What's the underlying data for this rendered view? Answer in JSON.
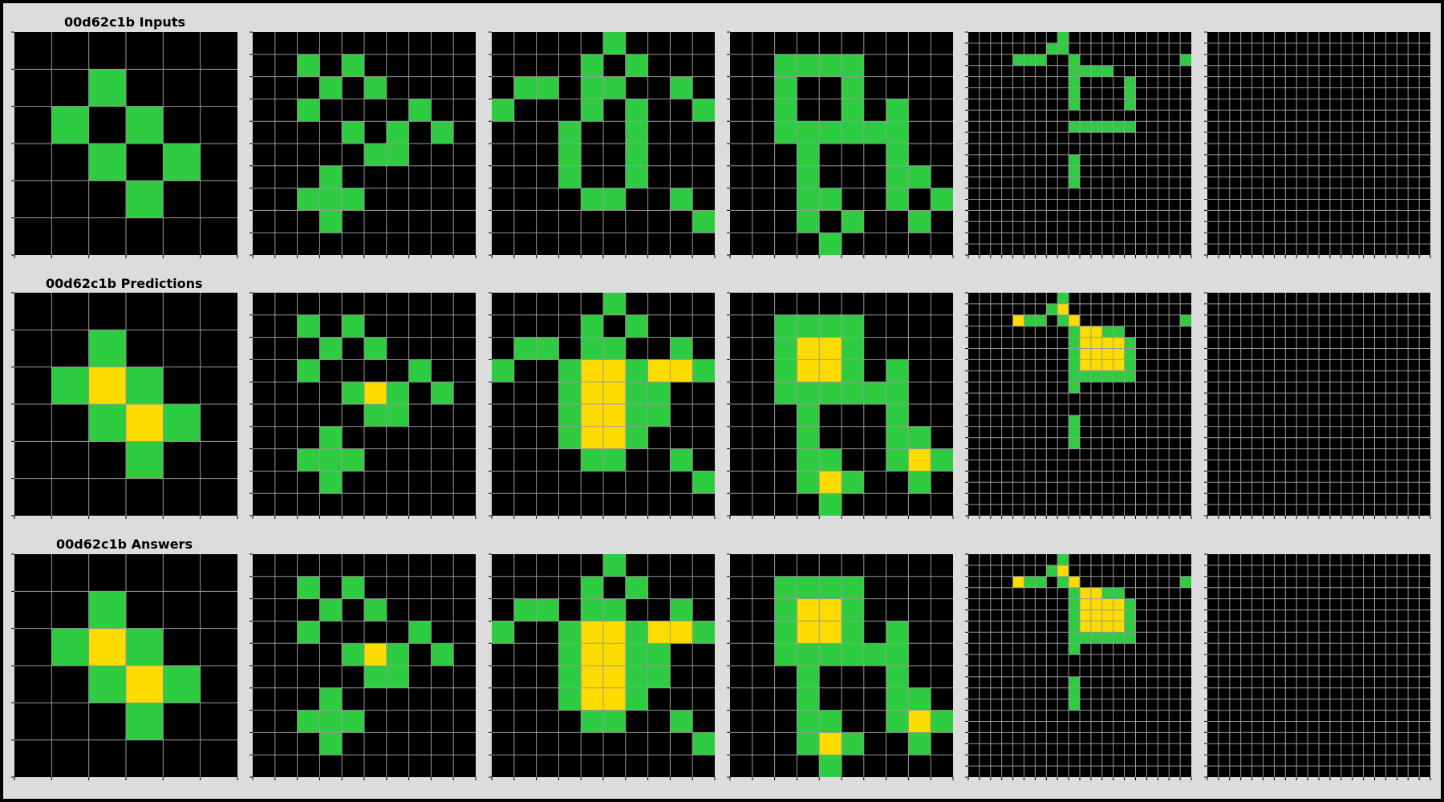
{
  "puzzle_id": "00d62c1b",
  "rows": [
    {
      "title": "00d62c1b Inputs"
    },
    {
      "title": "00d62c1b Predictions"
    },
    {
      "title": "00d62c1b Answers"
    }
  ],
  "colors": {
    "0": "#000000",
    "3": "#2ecc40",
    "4": "#ffdc00"
  },
  "grids": [
    [
      [
        "000000",
        "003000",
        "030300",
        "003030",
        "000300",
        "000000"
      ],
      [
        "0000000000",
        "0030300000",
        "0003030000",
        "0030000300",
        "0000303030",
        "0000033000",
        "0003000000",
        "0033300000",
        "0003000000",
        "0000000000"
      ],
      [
        "0000030000",
        "0000303000",
        "0330330030",
        "3000303003",
        "0003003000",
        "0003003000",
        "0003003000",
        "0000330030",
        "0000000003",
        "0000000000"
      ],
      [
        "0000000000",
        "0033330000",
        "0030030000",
        "0030030300",
        "0033333300",
        "0003000300",
        "0003000330",
        "0003300303",
        "0003030030",
        "0000300000"
      ],
      [
        "00000000300000000000",
        "00000003300000000000",
        "00003330030000000003",
        "00000000033330000000",
        "00000000030000300000",
        "00000000030000300000",
        "00000000030000300000",
        "00000000000000000000",
        "00000000033333300000",
        "00000000000000000000",
        "00000000000000000000",
        "00000000030000000000",
        "00000000030000000000",
        "00000000030000000000",
        "00000000000000000000",
        "00000000000000000000",
        "00000000000000000000",
        "00000000000000000000",
        "00000000000000000000",
        "00000000000000000000"
      ],
      [
        "00000000000000000000",
        "00000000000000000000",
        "00000000000000000000",
        "00000000000000000000",
        "00000000000000000000",
        "00000000000000000000",
        "00000000000000000000",
        "00000000000000000000",
        "00000000000000000000",
        "00000000000000000000",
        "00000000000000000000",
        "00000000000000000000",
        "00000000000000000000",
        "00000000000000000000",
        "00000000000000000000",
        "00000000000000000000",
        "00000000000000000000",
        "00000000000000000000",
        "00000000000000000000",
        "00000000000000000000"
      ]
    ],
    [
      [
        "000000",
        "003000",
        "034300",
        "003430",
        "000300",
        "000000"
      ],
      [
        "0000000000",
        "0030300000",
        "0003030000",
        "0030000300",
        "0000343030",
        "0000033000",
        "0003000000",
        "0033300000",
        "0003000000",
        "0000000000"
      ],
      [
        "0000030000",
        "0000303000",
        "0330330030",
        "3003443443",
        "0003443300",
        "0003443300",
        "0003443000",
        "0000330030",
        "0000000003",
        "0000000000"
      ],
      [
        "0000000000",
        "0033330000",
        "0034430000",
        "0034430300",
        "0033333300",
        "0003000300",
        "0003000330",
        "0003300343",
        "0003430030",
        "0000300000"
      ],
      [
        "00000000300000000000",
        "00000003400000000000",
        "00004330340000000003",
        "00000000034433000000",
        "00000000034444300000",
        "00000000034444300000",
        "00000000034444300000",
        "00000000033333300000",
        "00000000030000000000",
        "00000000000000000000",
        "00000000000000000000",
        "00000000030000000000",
        "00000000030000000000",
        "00000000030000000000",
        "00000000000000000000",
        "00000000000000000000",
        "00000000000000000000",
        "00000000000000000000",
        "00000000000000000000",
        "00000000000000000000"
      ],
      [
        "00000000000000000000",
        "00000000000000000000",
        "00000000000000000000",
        "00000000000000000000",
        "00000000000000000000",
        "00000000000000000000",
        "00000000000000000000",
        "00000000000000000000",
        "00000000000000000000",
        "00000000000000000000",
        "00000000000000000000",
        "00000000000000000000",
        "00000000000000000000",
        "00000000000000000000",
        "00000000000000000000",
        "00000000000000000000",
        "00000000000000000000",
        "00000000000000000000",
        "00000000000000000000",
        "00000000000000000000"
      ]
    ],
    [
      [
        "000000",
        "003000",
        "034300",
        "003430",
        "000300",
        "000000"
      ],
      [
        "0000000000",
        "0030300000",
        "0003030000",
        "0030000300",
        "0000343030",
        "0000033000",
        "0003000000",
        "0033300000",
        "0003000000",
        "0000000000"
      ],
      [
        "0000030000",
        "0000303000",
        "0330330030",
        "3003443443",
        "0003443300",
        "0003443300",
        "0003443000",
        "0000330030",
        "0000000003",
        "0000000000"
      ],
      [
        "0000000000",
        "0033330000",
        "0034430000",
        "0034430300",
        "0033333300",
        "0003000300",
        "0003000330",
        "0003300343",
        "0003430030",
        "0000300000"
      ],
      [
        "00000000300000000000",
        "00000003400000000000",
        "00004330340000000003",
        "00000000034433000000",
        "00000000034444300000",
        "00000000034444300000",
        "00000000034444300000",
        "00000000033333300000",
        "00000000030000000000",
        "00000000000000000000",
        "00000000000000000000",
        "00000000030000000000",
        "00000000030000000000",
        "00000000030000000000",
        "00000000000000000000",
        "00000000000000000000",
        "00000000000000000000",
        "00000000000000000000",
        "00000000000000000000",
        "00000000000000000000"
      ],
      [
        "00000000000000000000",
        "00000000000000000000",
        "00000000000000000000",
        "00000000000000000000",
        "00000000000000000000",
        "00000000000000000000",
        "00000000000000000000",
        "00000000000000000000",
        "00000000000000000000",
        "00000000000000000000",
        "00000000000000000000",
        "00000000000000000000",
        "00000000000000000000",
        "00000000000000000000",
        "00000000000000000000",
        "00000000000000000000",
        "00000000000000000000",
        "00000000000000000000",
        "00000000000000000000",
        "00000000000000000000"
      ]
    ]
  ]
}
